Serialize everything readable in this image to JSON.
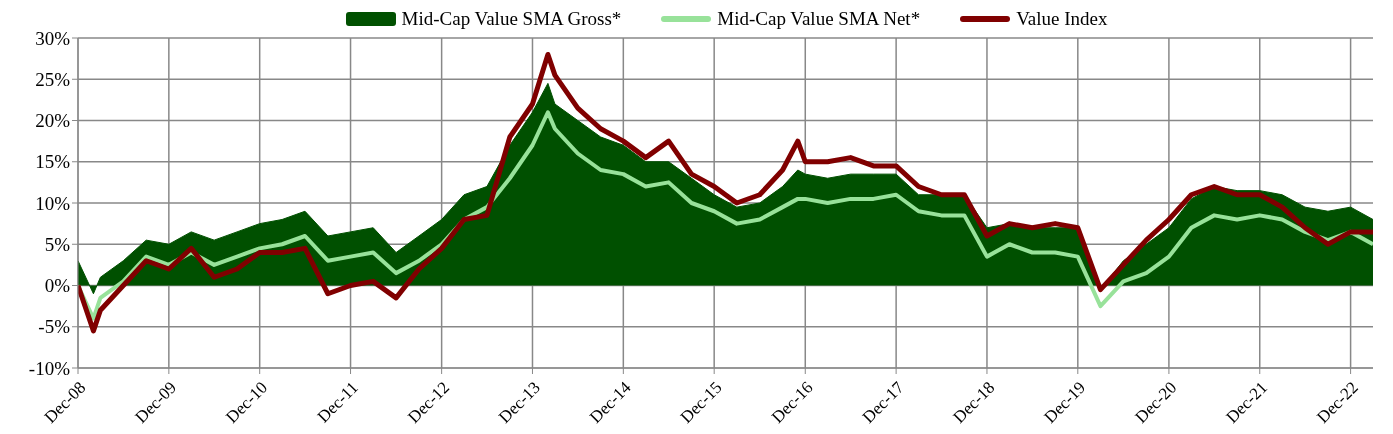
{
  "chart_data": {
    "type": "line",
    "x": [
      "2008-12",
      "2009-02",
      "2009-03",
      "2009-06",
      "2009-09",
      "2009-12",
      "2010-03",
      "2010-06",
      "2010-09",
      "2010-12",
      "2011-03",
      "2011-06",
      "2011-09",
      "2011-12",
      "2012-03",
      "2012-06",
      "2012-09",
      "2012-12",
      "2013-03",
      "2013-06",
      "2013-09",
      "2013-12",
      "2014-02",
      "2014-03",
      "2014-06",
      "2014-09",
      "2014-12",
      "2015-03",
      "2015-06",
      "2015-09",
      "2015-12",
      "2016-03",
      "2016-06",
      "2016-09",
      "2016-11",
      "2016-12",
      "2017-03",
      "2017-06",
      "2017-09",
      "2017-12",
      "2018-03",
      "2018-06",
      "2018-09",
      "2018-12",
      "2019-03",
      "2019-06",
      "2019-09",
      "2019-12",
      "2020-03",
      "2020-06",
      "2020-09",
      "2020-12",
      "2021-03",
      "2021-06",
      "2021-09",
      "2021-12",
      "2022-03",
      "2022-06",
      "2022-09",
      "2022-12",
      "2023-03"
    ],
    "series": [
      {
        "name": "Mid-Cap Value SMA Gross*",
        "type": "area",
        "color": "#005000",
        "values": [
          3,
          -1,
          1,
          3,
          5.5,
          5,
          6.5,
          5.5,
          6.5,
          7.5,
          8,
          9,
          6,
          6.5,
          7,
          4,
          6,
          8,
          11,
          12,
          17,
          21,
          24.5,
          22,
          20,
          18,
          17,
          15,
          15,
          13,
          11,
          9.5,
          10,
          12,
          14,
          13.5,
          13,
          13.5,
          13.5,
          13.5,
          11,
          11,
          11,
          7,
          7.5,
          7,
          7,
          7,
          -0.5,
          3,
          5,
          7,
          10.5,
          12,
          11.5,
          11.5,
          11,
          9.5,
          9,
          9.5,
          8
        ]
      },
      {
        "name": "Mid-Cap Value SMA Net*",
        "color": "#98e29a",
        "values": [
          0,
          -4,
          -1.5,
          0.5,
          3.5,
          2.5,
          4,
          2.5,
          3.5,
          4.5,
          5,
          6,
          3,
          3.5,
          4,
          1.5,
          3,
          5,
          8,
          9.5,
          13,
          17,
          21,
          19,
          16,
          14,
          13.5,
          12,
          12.5,
          10,
          9,
          7.5,
          8,
          9.5,
          10.5,
          10.5,
          10,
          10.5,
          10.5,
          11,
          9,
          8.5,
          8.5,
          3.5,
          5,
          4,
          4,
          3.5,
          -2.5,
          0.5,
          1.5,
          3.5,
          7,
          8.5,
          8,
          8.5,
          8,
          6.5,
          5.5,
          6.5,
          5
        ]
      },
      {
        "name": "Value Index",
        "color": "#800000",
        "values": [
          0,
          -5.5,
          -3,
          0,
          3,
          2,
          4.5,
          1,
          2,
          4,
          4,
          4.5,
          -1,
          0,
          0.5,
          -1.5,
          2,
          4.5,
          8,
          8.5,
          18,
          22,
          28,
          25.5,
          21.5,
          19,
          17.5,
          15.5,
          17.5,
          13.5,
          12,
          10,
          11,
          14,
          17.5,
          15,
          15,
          15.5,
          14.5,
          14.5,
          12,
          11,
          11,
          6,
          7.5,
          7,
          7.5,
          7,
          -0.5,
          2.5,
          5.5,
          8,
          11,
          12,
          11,
          11,
          9.5,
          7,
          5,
          6.5,
          6.5
        ]
      }
    ],
    "xlim": [
      "2008-12",
      "2023-03"
    ],
    "xticks": [
      {
        "value": "2008-12",
        "label": "Dec-08"
      },
      {
        "value": "2009-12",
        "label": "Dec-09"
      },
      {
        "value": "2010-12",
        "label": "Dec-10"
      },
      {
        "value": "2011-12",
        "label": "Dec-11"
      },
      {
        "value": "2012-12",
        "label": "Dec-12"
      },
      {
        "value": "2013-12",
        "label": "Dec-13"
      },
      {
        "value": "2014-12",
        "label": "Dec-14"
      },
      {
        "value": "2015-12",
        "label": "Dec-15"
      },
      {
        "value": "2016-12",
        "label": "Dec-16"
      },
      {
        "value": "2017-12",
        "label": "Dec-17"
      },
      {
        "value": "2018-12",
        "label": "Dec-18"
      },
      {
        "value": "2019-12",
        "label": "Dec-19"
      },
      {
        "value": "2020-12",
        "label": "Dec-20"
      },
      {
        "value": "2021-12",
        "label": "Dec-21"
      },
      {
        "value": "2022-12",
        "label": "Dec-22"
      }
    ],
    "ylim": [
      -10,
      30
    ],
    "yticks": [
      {
        "value": -10,
        "label": "-10%"
      },
      {
        "value": -5,
        "label": "-5%"
      },
      {
        "value": 0,
        "label": "0%"
      },
      {
        "value": 5,
        "label": "5%"
      },
      {
        "value": 10,
        "label": "10%"
      },
      {
        "value": 15,
        "label": "15%"
      },
      {
        "value": 20,
        "label": "20%"
      },
      {
        "value": 25,
        "label": "25%"
      },
      {
        "value": 30,
        "label": "30%"
      }
    ],
    "grid": true,
    "legend": "top",
    "line_style": "solid"
  }
}
